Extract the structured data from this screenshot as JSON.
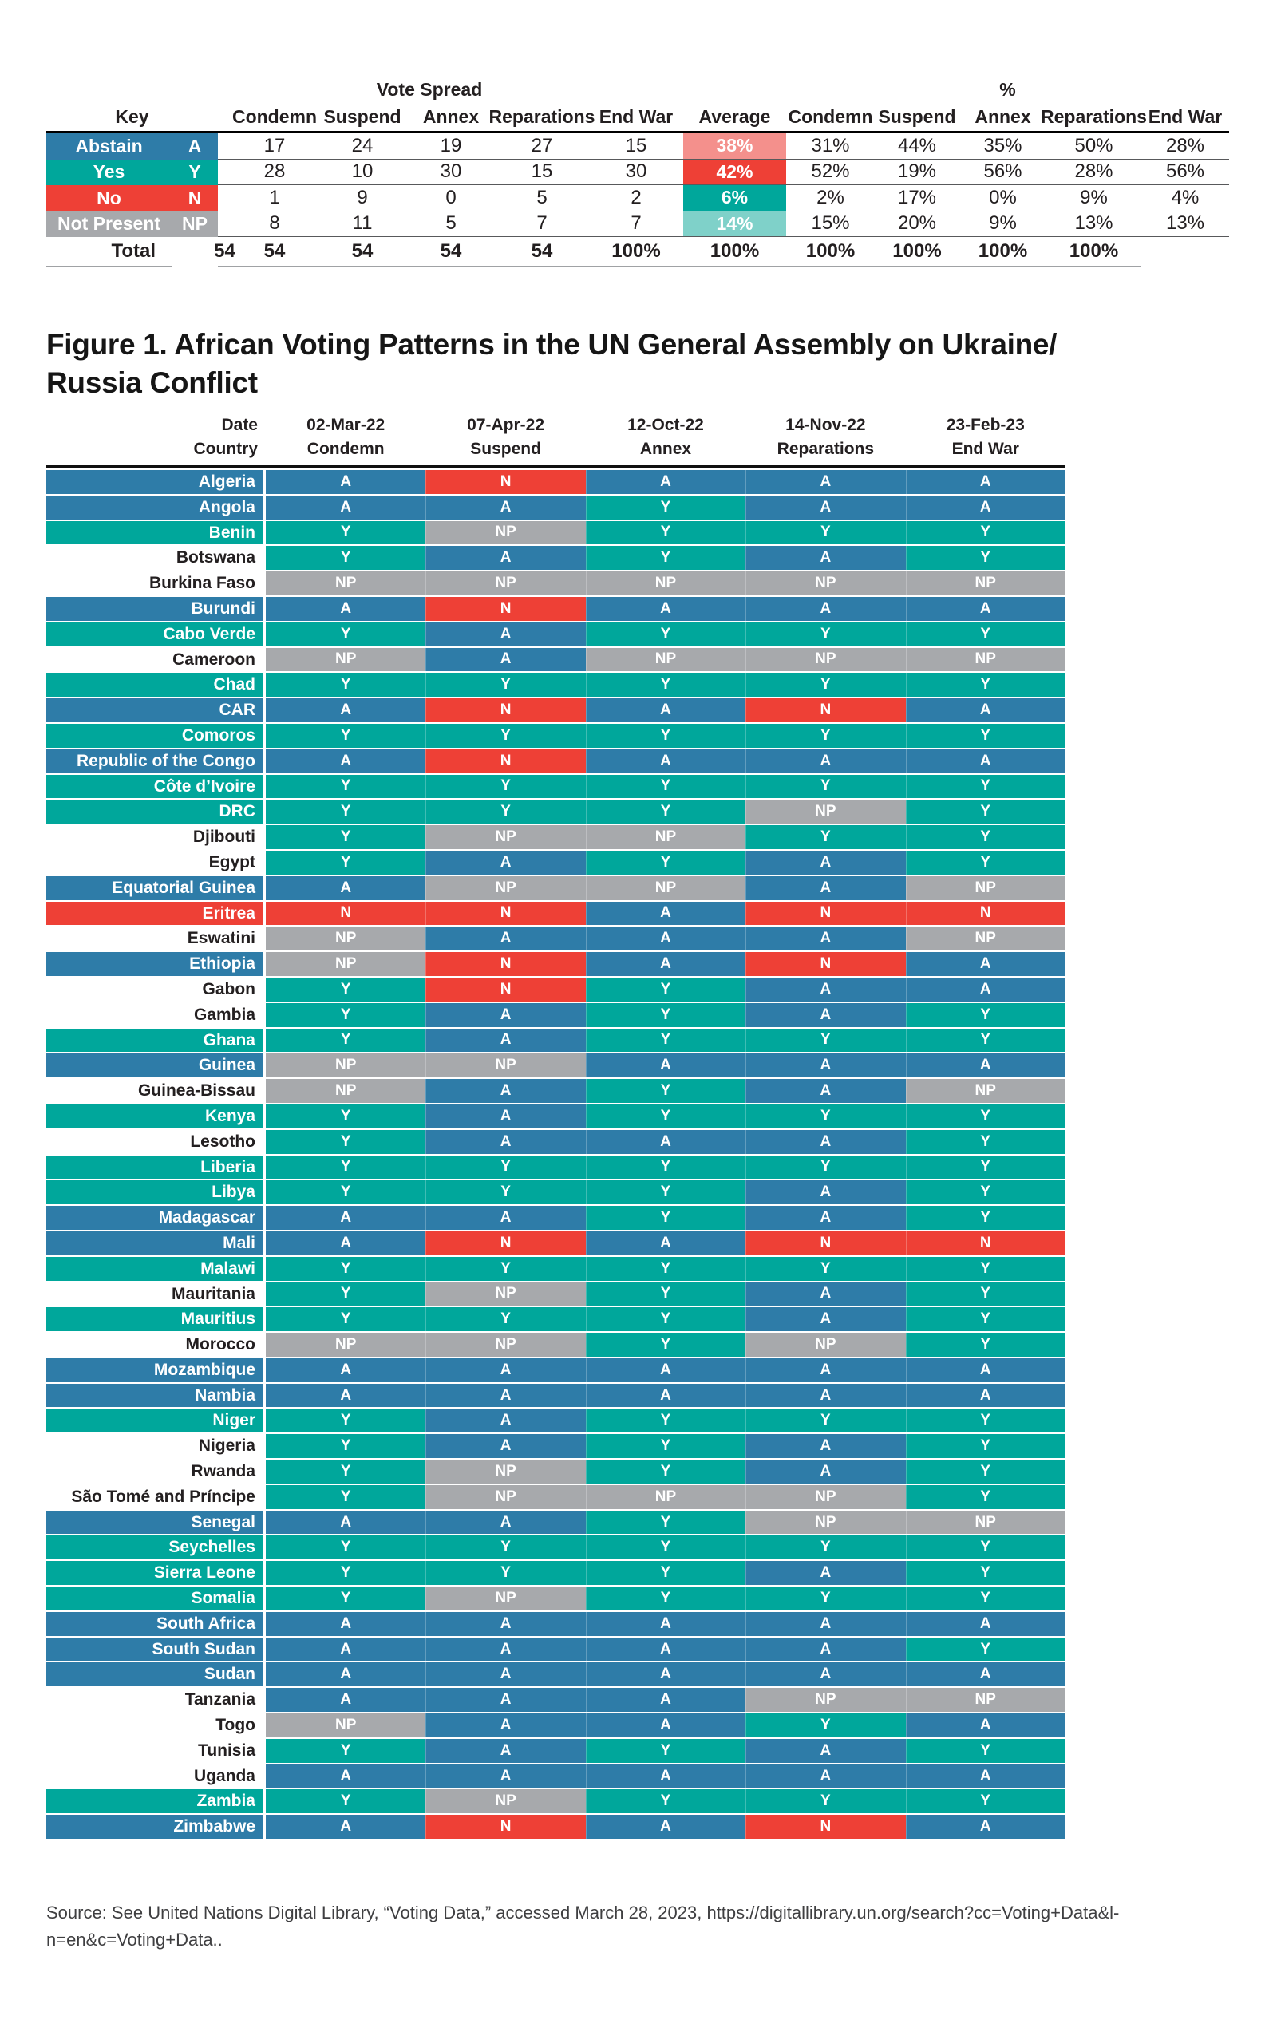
{
  "summary_table": {
    "group_headers": {
      "vote_spread": "Vote Spread",
      "percent": "%"
    },
    "col_headers": [
      "Key",
      "Condemn",
      "Suspend",
      "Annex",
      "Reparations",
      "End War",
      "Average",
      "Condemn",
      "Suspend",
      "Annex",
      "Reparations",
      "End War"
    ],
    "rows": [
      {
        "label": "Abstain",
        "letter": "A",
        "key_color": "#2e7ca8",
        "counts": [
          "17",
          "24",
          "19",
          "27",
          "15"
        ],
        "average": "38%",
        "avg_color": "#f4908c",
        "percents": [
          "31%",
          "44%",
          "35%",
          "50%",
          "28%"
        ]
      },
      {
        "label": "Yes",
        "letter": "Y",
        "key_color": "#00a79b",
        "counts": [
          "28",
          "10",
          "30",
          "15",
          "30"
        ],
        "average": "42%",
        "avg_color": "#ee4036",
        "percents": [
          "52%",
          "19%",
          "56%",
          "28%",
          "56%"
        ]
      },
      {
        "label": "No",
        "letter": "N",
        "key_color": "#ee4036",
        "counts": [
          "1",
          "9",
          "0",
          "5",
          "2"
        ],
        "average": "6%",
        "avg_color": "#00a79b",
        "percents": [
          "2%",
          "17%",
          "0%",
          "9%",
          "4%"
        ]
      },
      {
        "label": "Not Present",
        "letter": "NP",
        "key_color": "#a7a9ac",
        "counts": [
          "8",
          "11",
          "5",
          "7",
          "7"
        ],
        "average": "14%",
        "avg_color": "#7fd1c9",
        "percents": [
          "15%",
          "20%",
          "9%",
          "13%",
          "13%"
        ]
      }
    ],
    "total_row": {
      "label": "Total",
      "counts": [
        "54",
        "54",
        "54",
        "54",
        "54"
      ],
      "average": "100%",
      "percents": [
        "100%",
        "100%",
        "100%",
        "100%",
        "100%"
      ]
    }
  },
  "figure": {
    "title_line1": "Figure 1. African Voting Patterns in the UN General Assembly on Ukraine/",
    "title_line2": "Russia Conflict"
  },
  "legend": {
    "vote_colors": {
      "A": "#2e7ca8",
      "Y": "#00a79b",
      "N": "#ee4036",
      "NP": "#a7a9ac"
    },
    "band_colors": {
      "blue": "#2e7ca8",
      "teal": "#00a79b",
      "red": "#ee4036",
      "white": "#ffffff"
    },
    "band_text_colors": {
      "blue": "#ffffff",
      "teal": "#ffffff",
      "red": "#ffffff",
      "white": "#231f20"
    }
  },
  "votes_table": {
    "header": {
      "date_label": "Date",
      "country_label": "Country",
      "columns": [
        {
          "date": "02-Mar-22",
          "resolution": "Condemn"
        },
        {
          "date": "07-Apr-22",
          "resolution": "Suspend"
        },
        {
          "date": "12-Oct-22",
          "resolution": "Annex"
        },
        {
          "date": "14-Nov-22",
          "resolution": "Reparations"
        },
        {
          "date": "23-Feb-23",
          "resolution": "End War"
        }
      ]
    },
    "rows": [
      {
        "country": "Algeria",
        "band": "blue",
        "votes": [
          "A",
          "N",
          "A",
          "A",
          "A"
        ]
      },
      {
        "country": "Angola",
        "band": "blue",
        "votes": [
          "A",
          "A",
          "Y",
          "A",
          "A"
        ]
      },
      {
        "country": "Benin",
        "band": "teal",
        "votes": [
          "Y",
          "NP",
          "Y",
          "Y",
          "Y"
        ]
      },
      {
        "country": "Botswana",
        "band": "white",
        "votes": [
          "Y",
          "A",
          "Y",
          "A",
          "Y"
        ]
      },
      {
        "country": "Burkina Faso",
        "band": "white",
        "votes": [
          "NP",
          "NP",
          "NP",
          "NP",
          "NP"
        ]
      },
      {
        "country": "Burundi",
        "band": "blue",
        "votes": [
          "A",
          "N",
          "A",
          "A",
          "A"
        ]
      },
      {
        "country": "Cabo Verde",
        "band": "teal",
        "votes": [
          "Y",
          "A",
          "Y",
          "Y",
          "Y"
        ]
      },
      {
        "country": "Cameroon",
        "band": "white",
        "votes": [
          "NP",
          "A",
          "NP",
          "NP",
          "NP"
        ]
      },
      {
        "country": "Chad",
        "band": "teal",
        "votes": [
          "Y",
          "Y",
          "Y",
          "Y",
          "Y"
        ]
      },
      {
        "country": "CAR",
        "band": "blue",
        "votes": [
          "A",
          "N",
          "A",
          "N",
          "A"
        ]
      },
      {
        "country": "Comoros",
        "band": "teal",
        "votes": [
          "Y",
          "Y",
          "Y",
          "Y",
          "Y"
        ]
      },
      {
        "country": "Republic of the Congo",
        "band": "blue",
        "votes": [
          "A",
          "N",
          "A",
          "A",
          "A"
        ]
      },
      {
        "country": "Côte d’Ivoire",
        "band": "teal",
        "votes": [
          "Y",
          "Y",
          "Y",
          "Y",
          "Y"
        ]
      },
      {
        "country": "DRC",
        "band": "teal",
        "votes": [
          "Y",
          "Y",
          "Y",
          "NP",
          "Y"
        ]
      },
      {
        "country": "Djibouti",
        "band": "white",
        "votes": [
          "Y",
          "NP",
          "NP",
          "Y",
          "Y"
        ]
      },
      {
        "country": "Egypt",
        "band": "white",
        "votes": [
          "Y",
          "A",
          "Y",
          "A",
          "Y"
        ]
      },
      {
        "country": "Equatorial Guinea",
        "band": "blue",
        "votes": [
          "A",
          "NP",
          "NP",
          "A",
          "NP"
        ]
      },
      {
        "country": "Eritrea",
        "band": "red",
        "votes": [
          "N",
          "N",
          "A",
          "N",
          "N"
        ]
      },
      {
        "country": "Eswatini",
        "band": "white",
        "votes": [
          "NP",
          "A",
          "A",
          "A",
          "NP"
        ]
      },
      {
        "country": "Ethiopia",
        "band": "blue",
        "votes": [
          "NP",
          "N",
          "A",
          "N",
          "A"
        ]
      },
      {
        "country": "Gabon",
        "band": "white",
        "votes": [
          "Y",
          "N",
          "Y",
          "A",
          "A"
        ]
      },
      {
        "country": "Gambia",
        "band": "white",
        "votes": [
          "Y",
          "A",
          "Y",
          "A",
          "Y"
        ]
      },
      {
        "country": "Ghana",
        "band": "teal",
        "votes": [
          "Y",
          "A",
          "Y",
          "Y",
          "Y"
        ]
      },
      {
        "country": "Guinea",
        "band": "blue",
        "votes": [
          "NP",
          "NP",
          "A",
          "A",
          "A"
        ]
      },
      {
        "country": "Guinea-Bissau",
        "band": "white",
        "votes": [
          "NP",
          "A",
          "Y",
          "A",
          "NP"
        ]
      },
      {
        "country": "Kenya",
        "band": "teal",
        "votes": [
          "Y",
          "A",
          "Y",
          "Y",
          "Y"
        ]
      },
      {
        "country": "Lesotho",
        "band": "white",
        "votes": [
          "Y",
          "A",
          "A",
          "A",
          "Y"
        ]
      },
      {
        "country": "Liberia",
        "band": "teal",
        "votes": [
          "Y",
          "Y",
          "Y",
          "Y",
          "Y"
        ]
      },
      {
        "country": "Libya",
        "band": "teal",
        "votes": [
          "Y",
          "Y",
          "Y",
          "A",
          "Y"
        ]
      },
      {
        "country": "Madagascar",
        "band": "blue",
        "votes": [
          "A",
          "A",
          "Y",
          "A",
          "Y"
        ]
      },
      {
        "country": "Mali",
        "band": "blue",
        "votes": [
          "A",
          "N",
          "A",
          "N",
          "N"
        ]
      },
      {
        "country": "Malawi",
        "band": "teal",
        "votes": [
          "Y",
          "Y",
          "Y",
          "Y",
          "Y"
        ]
      },
      {
        "country": "Mauritania",
        "band": "white",
        "votes": [
          "Y",
          "NP",
          "Y",
          "A",
          "Y"
        ]
      },
      {
        "country": "Mauritius",
        "band": "teal",
        "votes": [
          "Y",
          "Y",
          "Y",
          "A",
          "Y"
        ]
      },
      {
        "country": "Morocco",
        "band": "white",
        "votes": [
          "NP",
          "NP",
          "Y",
          "NP",
          "Y"
        ]
      },
      {
        "country": "Mozambique",
        "band": "blue",
        "votes": [
          "A",
          "A",
          "A",
          "A",
          "A"
        ]
      },
      {
        "country": "Nambia",
        "band": "blue",
        "votes": [
          "A",
          "A",
          "A",
          "A",
          "A"
        ]
      },
      {
        "country": "Niger",
        "band": "teal",
        "votes": [
          "Y",
          "A",
          "Y",
          "Y",
          "Y"
        ]
      },
      {
        "country": "Nigeria",
        "band": "white",
        "votes": [
          "Y",
          "A",
          "Y",
          "A",
          "Y"
        ]
      },
      {
        "country": "Rwanda",
        "band": "white",
        "votes": [
          "Y",
          "NP",
          "Y",
          "A",
          "Y"
        ]
      },
      {
        "country": "São Tomé and Príncipe",
        "band": "white",
        "votes": [
          "Y",
          "NP",
          "NP",
          "NP",
          "Y"
        ]
      },
      {
        "country": "Senegal",
        "band": "blue",
        "votes": [
          "A",
          "A",
          "Y",
          "NP",
          "NP"
        ]
      },
      {
        "country": "Seychelles",
        "band": "teal",
        "votes": [
          "Y",
          "Y",
          "Y",
          "Y",
          "Y"
        ]
      },
      {
        "country": "Sierra Leone",
        "band": "teal",
        "votes": [
          "Y",
          "Y",
          "Y",
          "A",
          "Y"
        ]
      },
      {
        "country": "Somalia",
        "band": "teal",
        "votes": [
          "Y",
          "NP",
          "Y",
          "Y",
          "Y"
        ]
      },
      {
        "country": "South Africa",
        "band": "blue",
        "votes": [
          "A",
          "A",
          "A",
          "A",
          "A"
        ]
      },
      {
        "country": "South Sudan",
        "band": "blue",
        "votes": [
          "A",
          "A",
          "A",
          "A",
          "Y"
        ]
      },
      {
        "country": "Sudan",
        "band": "blue",
        "votes": [
          "A",
          "A",
          "A",
          "A",
          "A"
        ]
      },
      {
        "country": "Tanzania",
        "band": "white",
        "votes": [
          "A",
          "A",
          "A",
          "NP",
          "NP"
        ]
      },
      {
        "country": "Togo",
        "band": "white",
        "votes": [
          "NP",
          "A",
          "A",
          "Y",
          "A"
        ]
      },
      {
        "country": "Tunisia",
        "band": "white",
        "votes": [
          "Y",
          "A",
          "Y",
          "A",
          "Y"
        ]
      },
      {
        "country": "Uganda",
        "band": "white",
        "votes": [
          "A",
          "A",
          "A",
          "A",
          "A"
        ]
      },
      {
        "country": "Zambia",
        "band": "teal",
        "votes": [
          "Y",
          "NP",
          "Y",
          "Y",
          "Y"
        ]
      },
      {
        "country": "Zimbabwe",
        "band": "blue",
        "votes": [
          "A",
          "N",
          "A",
          "N",
          "A"
        ]
      }
    ]
  },
  "source": {
    "line1": "Source: See United Nations Digital Library, “Voting Data,” accessed March 28, 2023, https://digitallibrary.un.org/search?cc=Voting+Data&l-",
    "line2": "n=en&c=Voting+Data.."
  }
}
